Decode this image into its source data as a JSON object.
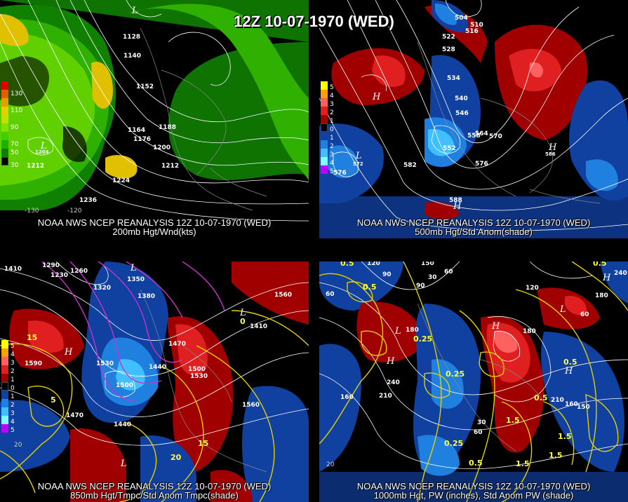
{
  "title": "12Z 10-07-1970 (WED)",
  "panels": [
    {
      "caption_line1": "NOAA NWS NCEP REANALYSIS 12Z 10-07-1970 (WED)",
      "caption_line2": "200mb Hgt/Wnd(kts)",
      "legend_labels": [
        "130",
        "110",
        "90",
        "70",
        "50",
        "30"
      ],
      "legend_colors": [
        "#e00000",
        "#e06000",
        "#e0a000",
        "#e0d000",
        "#c0e000",
        "#80e000",
        "#40d000",
        "#20b000",
        "#108000",
        "#000000"
      ],
      "contour_labels": [
        "1128",
        "1140",
        "1152",
        "1164",
        "1176",
        "1188",
        "1200",
        "1212",
        "1212",
        "1224",
        "1236",
        "1204"
      ],
      "axis_labels": [
        "-130",
        "-120"
      ],
      "centers": [
        "L",
        "L"
      ]
    },
    {
      "caption_line1": "NOAA NWS NCEP REANALYSIS 12Z 10-07-1970 (WED)",
      "caption_line2": "500mb Hgt/Std Anom(shade)",
      "legend_labels": [
        "5",
        "4",
        "3",
        "2",
        "1",
        "0",
        "1",
        "2",
        "3",
        "4",
        "5"
      ],
      "legend_colors": [
        "#ffff00",
        "#ffa000",
        "#ff6060",
        "#e02020",
        "#a00000",
        "#000000",
        "#1040a0",
        "#2080e0",
        "#40c0ff",
        "#80ffff",
        "#c000ff"
      ],
      "contour_labels": [
        "504",
        "510",
        "516",
        "522",
        "528",
        "534",
        "540",
        "546",
        "552",
        "558",
        "564",
        "570",
        "576",
        "576",
        "582",
        "588",
        "572",
        "586"
      ],
      "centers": [
        "H",
        "L",
        "H",
        "H"
      ]
    },
    {
      "caption_line1": "NOAA NWS NCEP REANALYSIS 12Z 10-07-1970 (WED)",
      "caption_line2": "850mb Hgt/Tmpc/Std Anom Tmpc(shade)",
      "legend_labels": [
        "5",
        "4",
        "3",
        "2",
        "1",
        "0",
        "1",
        "2",
        "3",
        "4",
        "5"
      ],
      "legend_colors": [
        "#ffff00",
        "#ffa000",
        "#ff6060",
        "#e02020",
        "#a00000",
        "#000000",
        "#1040a0",
        "#2080e0",
        "#40c0ff",
        "#80ffff",
        "#c000ff"
      ],
      "contour_labels": [
        "1410",
        "1290",
        "1260",
        "1230",
        "1320",
        "1350",
        "1380",
        "1410",
        "1440",
        "1470",
        "1500",
        "1530",
        "1560",
        "1590",
        "1500",
        "1470",
        "1440",
        "1560",
        "1530"
      ],
      "temp_labels": [
        "15",
        "5",
        "15",
        "20",
        "0"
      ],
      "axis_labels": [
        "20"
      ],
      "centers": [
        "L",
        "H",
        "L",
        "L"
      ]
    },
    {
      "caption_line1": "NOAA NWS NCEP REANALYSIS 12Z 10-07-1970 (WED)",
      "caption_line2": "1000mb Hgt, PW (inches), Std Anom PW (shade)",
      "contour_labels": [
        "150",
        "120",
        "90",
        "60",
        "30",
        "60",
        "90",
        "120",
        "180",
        "240",
        "180",
        "210",
        "160",
        "180",
        "210",
        "160",
        "150",
        "240",
        "60",
        "30",
        "60"
      ],
      "pw_labels": [
        "0.5",
        "0.5",
        "0.5",
        "0.25",
        "0.25",
        "0.25",
        "0.5",
        "1.5",
        "1.5",
        "1.5",
        "0.5",
        "0.5",
        "1.5"
      ],
      "axis_labels": [
        "20"
      ],
      "centers": [
        "H",
        "L",
        "H",
        "L",
        "H",
        "H"
      ]
    }
  ]
}
